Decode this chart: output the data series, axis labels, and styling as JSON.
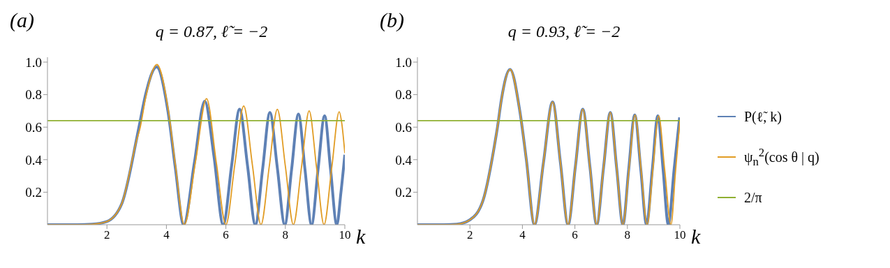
{
  "chart_data": [
    {
      "type": "line",
      "title": "q = 0.87, ℓ̃ = −2",
      "annotations": [
        "(a)"
      ],
      "xlabel": "k",
      "xlim": [
        0,
        10
      ],
      "xticks": [
        2,
        4,
        6,
        8,
        10
      ],
      "ylim": [
        0,
        1.03
      ],
      "yticks": [
        0.2,
        0.4,
        0.6,
        0.8,
        {
          "value": 1,
          "label": "1.0"
        }
      ],
      "grid": false,
      "legend": false,
      "marker": "none",
      "line_style": "solid",
      "series": [
        {
          "color": "#5e81b5",
          "x": [
            0,
            1,
            1.5,
            2,
            2.5,
            3,
            3.12,
            3.3,
            3.67,
            4.05,
            4.3,
            4.58,
            4.94,
            5.29,
            5.6,
            5.91,
            6.19,
            6.46,
            6.73,
            6.99,
            7.24,
            7.48,
            7.73,
            7.98,
            8.21,
            8.44,
            8.66,
            8.88,
            9.1,
            9.32,
            9.52,
            9.73,
            9.87,
            10
          ],
          "values": [
            0,
            0,
            0.003,
            0.02,
            0.13,
            0.53,
            0.64,
            0.8,
            0.97,
            0.7,
            0.35,
            0,
            0.38,
            0.76,
            0.42,
            0,
            0.36,
            0.71,
            0.36,
            0,
            0.35,
            0.69,
            0.35,
            0,
            0.34,
            0.68,
            0.34,
            0,
            0.34,
            0.67,
            0.34,
            0,
            0.2,
            0.43
          ]
        },
        {
          "color": "#e19c24",
          "x": [
            0,
            1,
            1.5,
            2,
            2.5,
            3,
            3.12,
            3.3,
            3.68,
            4.05,
            4.3,
            4.6,
            4.98,
            5.35,
            5.68,
            6.0,
            6.3,
            6.6,
            6.89,
            7.18,
            7.46,
            7.73,
            8.0,
            8.27,
            8.54,
            8.8,
            9.05,
            9.3,
            9.56,
            9.81,
            9.9,
            10
          ],
          "values": [
            0,
            0,
            0.003,
            0.02,
            0.13,
            0.52,
            0.6,
            0.78,
            0.985,
            0.72,
            0.37,
            0,
            0.39,
            0.775,
            0.38,
            0,
            0.37,
            0.73,
            0.37,
            0,
            0.36,
            0.71,
            0.36,
            0,
            0.35,
            0.7,
            0.35,
            0,
            0.35,
            0.695,
            0.62,
            0.44
          ]
        },
        {
          "color": "#8fb032",
          "x": [
            0,
            10
          ],
          "values": [
            0.64,
            0.64
          ]
        }
      ]
    },
    {
      "type": "line",
      "title": "q = 0.93, ℓ̃ = −2",
      "annotations": [
        "(b)"
      ],
      "xlabel": "k",
      "xlim": [
        0,
        10
      ],
      "xticks": [
        2,
        4,
        6,
        8,
        10
      ],
      "ylim": [
        0,
        1.03
      ],
      "yticks": [
        0.2,
        0.4,
        0.6,
        0.8,
        {
          "value": 1,
          "label": "1.0"
        }
      ],
      "grid": false,
      "legend": "right",
      "marker": "none",
      "line_style": "solid",
      "series": [
        {
          "name": "P(ℓ̃, k)",
          "color": "#5e81b5",
          "x": [
            0,
            1,
            1.5,
            2,
            2.5,
            3,
            3.05,
            3.2,
            3.53,
            3.9,
            4.15,
            4.46,
            4.8,
            5.15,
            5.45,
            5.74,
            6.02,
            6.3,
            6.57,
            6.83,
            7.09,
            7.35,
            7.59,
            7.83,
            8.05,
            8.28,
            8.51,
            8.73,
            8.95,
            9.16,
            9.36,
            9.56,
            9.78,
            9.99
          ],
          "values": [
            0,
            0,
            0.003,
            0.03,
            0.15,
            0.55,
            0.6,
            0.77,
            0.955,
            0.7,
            0.4,
            0,
            0.38,
            0.755,
            0.38,
            0,
            0.36,
            0.71,
            0.36,
            0,
            0.35,
            0.69,
            0.35,
            0,
            0.34,
            0.675,
            0.34,
            0,
            0.34,
            0.67,
            0.34,
            0,
            0.34,
            0.66
          ]
        },
        {
          "name": "ψ$_{n}$$^{2}$(cos θ | q)",
          "color": "#e19c24",
          "x": [
            0,
            1,
            1.5,
            2,
            2.5,
            3,
            3.05,
            3.2,
            3.53,
            3.9,
            4.15,
            4.46,
            4.8,
            5.15,
            5.45,
            5.74,
            6.02,
            6.3,
            6.57,
            6.83,
            7.09,
            7.35,
            7.59,
            7.83,
            8.06,
            8.29,
            8.52,
            8.75,
            8.97,
            9.19,
            9.42,
            9.66,
            9.83,
            10
          ],
          "values": [
            0,
            0,
            0.003,
            0.03,
            0.15,
            0.55,
            0.6,
            0.77,
            0.955,
            0.7,
            0.4,
            0,
            0.38,
            0.755,
            0.38,
            0,
            0.36,
            0.71,
            0.36,
            0,
            0.35,
            0.69,
            0.35,
            0,
            0.34,
            0.675,
            0.34,
            0,
            0.34,
            0.67,
            0.34,
            0,
            0.32,
            0.64
          ]
        },
        {
          "name": "2/π",
          "color": "#8fb032",
          "x": [
            0,
            10
          ],
          "values": [
            0.64,
            0.64
          ]
        }
      ]
    }
  ]
}
